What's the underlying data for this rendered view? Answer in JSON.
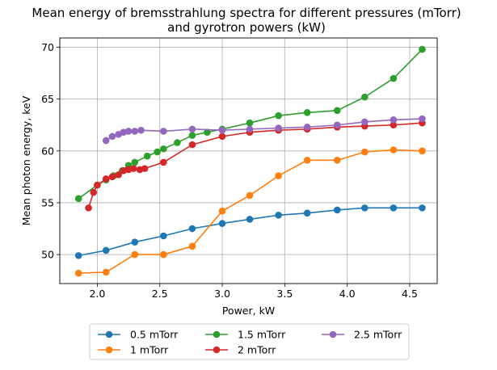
{
  "chart_data": {
    "type": "line",
    "title_line1": "Mean energy of bremsstrahlung spectra for different pressures (mTorr)",
    "title_line2": "and gyrotron powers (kW)",
    "xlabel": "Power, kW",
    "ylabel": "Mean photon energy, keV",
    "xlim": [
      1.7,
      4.72
    ],
    "ylim": [
      47.2,
      70.9
    ],
    "xticks": [
      2.0,
      2.5,
      3.0,
      3.5,
      4.0,
      4.5
    ],
    "xtick_labels": [
      "2.0",
      "2.5",
      "3.0",
      "3.5",
      "4.0",
      "4.5"
    ],
    "yticks": [
      50,
      55,
      60,
      65,
      70
    ],
    "ytick_labels": [
      "50",
      "55",
      "60",
      "65",
      "70"
    ],
    "grid": true,
    "legend_position": "bottom, below plot, 3 columns",
    "series": [
      {
        "name": "0.5 mTorr",
        "color": "#1f77b4",
        "x": [
          1.85,
          2.07,
          2.3,
          2.53,
          2.76,
          3.0,
          3.22,
          3.45,
          3.68,
          3.92,
          4.14,
          4.37,
          4.6
        ],
        "y": [
          49.9,
          50.4,
          51.2,
          51.8,
          52.5,
          53.0,
          53.4,
          53.8,
          54.0,
          54.3,
          54.5,
          54.5,
          54.5
        ]
      },
      {
        "name": "1 mTorr",
        "color": "#ff7f0e",
        "x": [
          1.85,
          2.07,
          2.3,
          2.53,
          2.76,
          3.0,
          3.22,
          3.45,
          3.68,
          3.92,
          4.14,
          4.37,
          4.6
        ],
        "y": [
          48.2,
          48.3,
          50.0,
          50.0,
          50.8,
          54.2,
          55.7,
          57.6,
          59.1,
          59.1,
          59.9,
          60.1,
          60.0
        ]
      },
      {
        "name": "1.5 mTorr",
        "color": "#2ca02c",
        "x": [
          1.85,
          2.0,
          2.07,
          2.13,
          2.2,
          2.25,
          2.3,
          2.4,
          2.48,
          2.53,
          2.64,
          2.76,
          2.88,
          3.0,
          3.22,
          3.45,
          3.68,
          3.92,
          4.14,
          4.37,
          4.6
        ],
        "y": [
          55.4,
          56.7,
          57.2,
          57.6,
          58.1,
          58.6,
          58.9,
          59.5,
          59.9,
          60.2,
          60.8,
          61.5,
          61.8,
          62.1,
          62.7,
          63.4,
          63.7,
          63.9,
          65.2,
          67.0,
          69.8
        ]
      },
      {
        "name": "2 mTorr",
        "color": "#d62728",
        "x": [
          1.93,
          1.97,
          2.0,
          2.07,
          2.12,
          2.17,
          2.21,
          2.25,
          2.29,
          2.34,
          2.38,
          2.53,
          2.76,
          3.0,
          3.22,
          3.45,
          3.68,
          3.92,
          4.14,
          4.37,
          4.6
        ],
        "y": [
          54.5,
          56.0,
          56.7,
          57.3,
          57.5,
          57.7,
          58.1,
          58.2,
          58.3,
          58.2,
          58.3,
          58.9,
          60.6,
          61.4,
          61.8,
          62.0,
          62.1,
          62.3,
          62.4,
          62.5,
          62.7
        ]
      },
      {
        "name": "2.5 mTorr",
        "color": "#9467bd",
        "x": [
          2.07,
          2.12,
          2.17,
          2.21,
          2.25,
          2.3,
          2.35,
          2.53,
          2.76,
          3.0,
          3.22,
          3.45,
          3.68,
          3.92,
          4.14,
          4.37,
          4.6
        ],
        "y": [
          61.0,
          61.4,
          61.6,
          61.8,
          61.9,
          61.9,
          62.0,
          61.9,
          62.1,
          62.0,
          62.1,
          62.2,
          62.3,
          62.5,
          62.8,
          63.0,
          63.1
        ]
      }
    ]
  }
}
